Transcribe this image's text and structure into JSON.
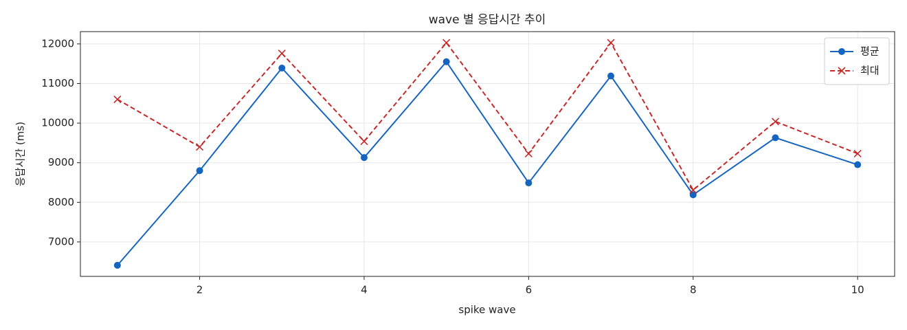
{
  "chart_data": {
    "type": "line",
    "title": "wave 별 응답시간 추이",
    "x_label": "spike wave",
    "y_label": "응답시간 (ms)",
    "x": [
      1,
      2,
      3,
      4,
      5,
      6,
      7,
      8,
      9,
      10
    ],
    "series": [
      {
        "name": "평균",
        "color": "#1565c0",
        "marker": "o",
        "linestyle": "solid",
        "values": [
          6410,
          8800,
          11390,
          9130,
          11550,
          8490,
          11190,
          8190,
          9630,
          8950
        ]
      },
      {
        "name": "최대",
        "color": "#c62828",
        "marker": "x",
        "linestyle": "dashed",
        "values": [
          10600,
          9400,
          11760,
          9540,
          12030,
          9230,
          12030,
          8310,
          10040,
          9230
        ]
      }
    ],
    "xlim": [
      0.55,
      10.45
    ],
    "ylim": [
      6130,
      12310
    ],
    "xticks": [
      2,
      4,
      6,
      8,
      10
    ],
    "yticks": [
      7000,
      8000,
      9000,
      10000,
      11000,
      12000
    ],
    "grid": true,
    "legend": "upper right"
  }
}
